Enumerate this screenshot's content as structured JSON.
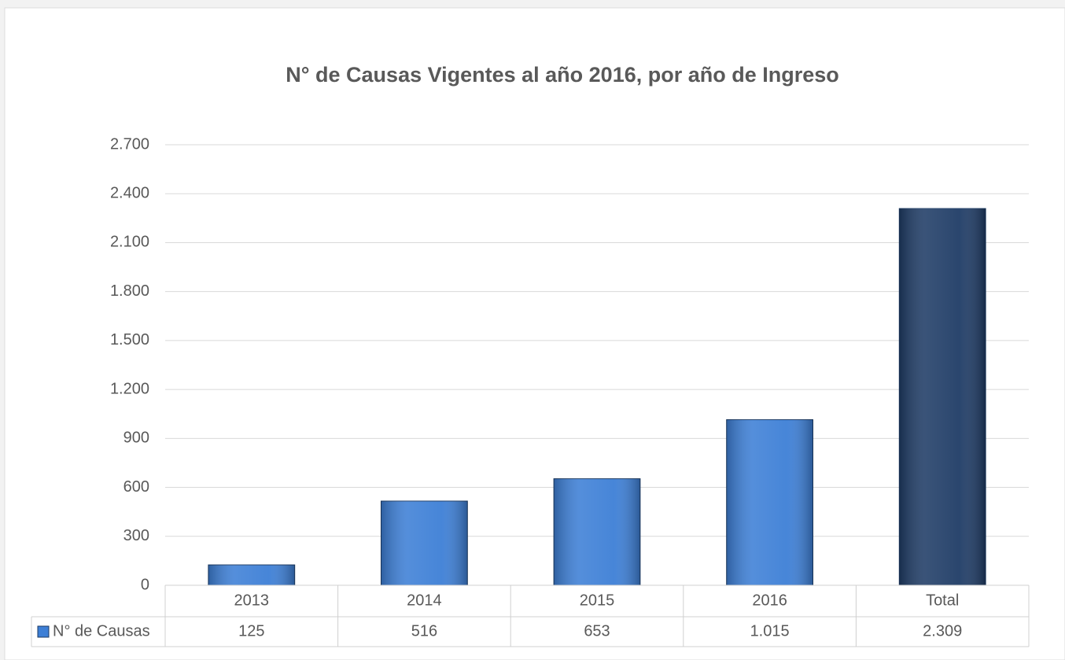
{
  "chart_data": {
    "type": "bar",
    "title": "N° de Causas Vigentes al año 2016, por año de Ingreso",
    "categories": [
      "2013",
      "2014",
      "2015",
      "2016",
      "Total"
    ],
    "series": [
      {
        "name": "N° de Causas",
        "color": "#3d7fd6",
        "colors": [
          "#3d7fd6",
          "#3d7fd6",
          "#3d7fd6",
          "#3d7fd6",
          "#1f3c66"
        ],
        "values": [
          125,
          516,
          653,
          1015,
          2309
        ],
        "value_labels": [
          "125",
          "516",
          "653",
          "1.015",
          "2.309"
        ]
      }
    ],
    "ylim": [
      0,
      2700
    ],
    "yticks": [
      0,
      300,
      600,
      900,
      {
        "value": 1200,
        "label": "1.200"
      },
      {
        "value": 1500,
        "label": "1.500"
      },
      {
        "value": 1800,
        "label": "1.800"
      },
      {
        "value": 2100,
        "label": "2.100"
      },
      {
        "value": 2400,
        "label": "2.400"
      },
      {
        "value": 2700,
        "label": "2.700"
      }
    ],
    "grid": true,
    "data_table": true
  }
}
